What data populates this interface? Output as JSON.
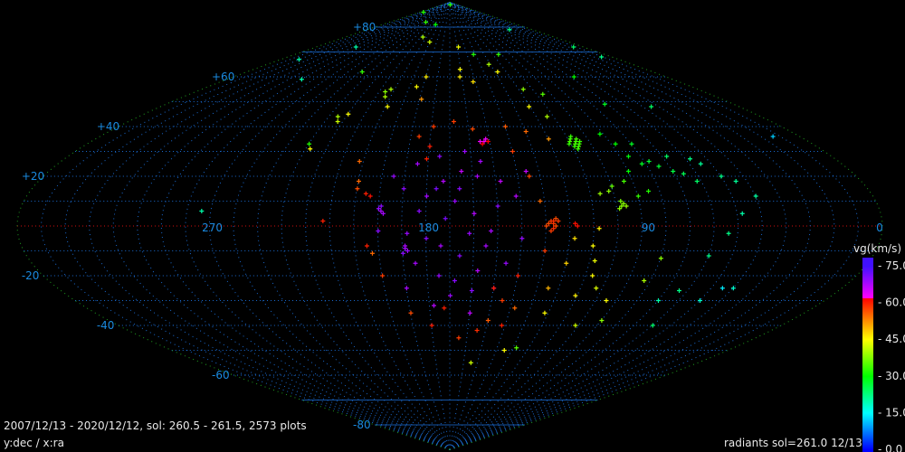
{
  "footer": {
    "summary": "2007/12/13 - 2020/12/12,  sol: 260.5 - 261.5, 2573 plots",
    "axes": "y:dec / x:ra",
    "radiants": "radiants sol=261.0 12/13"
  },
  "colors": {
    "background": "#000000",
    "grid": "#1a6ad0",
    "equator": "#d01010",
    "boundary": "#20a020",
    "label": "#1a8ae0"
  },
  "chart_data": {
    "type": "scatter",
    "projection": "sinusoidal",
    "xlabel": "ra",
    "ylabel": "dec",
    "xlim": [
      360,
      0
    ],
    "ylim": [
      -90,
      90
    ],
    "grid": true,
    "ra_tick_labels": [
      {
        "value": 270,
        "label": "270"
      },
      {
        "value": 180,
        "label": "180"
      },
      {
        "value": 90,
        "label": "90"
      },
      {
        "value": 0,
        "label": "0"
      }
    ],
    "dec_tick_labels": [
      {
        "value": 80,
        "label": "+80"
      },
      {
        "value": 60,
        "label": "+60"
      },
      {
        "value": 40,
        "label": "+40"
      },
      {
        "value": 20,
        "label": "+20"
      },
      {
        "value": -20,
        "label": "-20"
      },
      {
        "value": -40,
        "label": "-40"
      },
      {
        "value": -60,
        "label": "-60"
      },
      {
        "value": -80,
        "label": "-80"
      }
    ],
    "colorbar": {
      "title": "vg(km/s)",
      "range": [
        0,
        75
      ],
      "tick_labels": [
        "75.0",
        "60.0",
        "45.0",
        "30.0",
        "15.0",
        "0.0"
      ],
      "tick_values": [
        75,
        60,
        45,
        30,
        15,
        0
      ],
      "stops": [
        [
          0,
          "#0000ff"
        ],
        [
          15,
          "#00ffff"
        ],
        [
          30,
          "#00ff00"
        ],
        [
          45,
          "#ffff00"
        ],
        [
          62,
          "#ff0000"
        ],
        [
          62.01,
          "#ff00ff"
        ],
        [
          75,
          "#4010ff"
        ]
      ]
    },
    "point_fields": [
      "ra",
      "dec",
      "vg"
    ],
    "points": [
      [
        180,
        89,
        32
      ],
      [
        340,
        86,
        32
      ],
      [
        253,
        82,
        33
      ],
      [
        219,
        81,
        30
      ],
      [
        51,
        79,
        22
      ],
      [
        227,
        76,
        40
      ],
      [
        211,
        74,
        42
      ],
      [
        307,
        72,
        20
      ],
      [
        169,
        72,
        44
      ],
      [
        153,
        69,
        32
      ],
      [
        124,
        69,
        33
      ],
      [
        341,
        67,
        20
      ],
      [
        300,
        59,
        20
      ],
      [
        258,
        62,
        33
      ],
      [
        223,
        55,
        40
      ],
      [
        224,
        52,
        40
      ],
      [
        226,
        54,
        38
      ],
      [
        219,
        48,
        45
      ],
      [
        205,
        56,
        45
      ],
      [
        200,
        60,
        46
      ],
      [
        199,
        51,
        52
      ],
      [
        172,
        60,
        46
      ],
      [
        162,
        58,
        47
      ],
      [
        171,
        63,
        45
      ],
      [
        142,
        65,
        40
      ],
      [
        138,
        62,
        45
      ],
      [
        131,
        48,
        45
      ],
      [
        127,
        55,
        38
      ],
      [
        116,
        53,
        35
      ],
      [
        124,
        44,
        40
      ],
      [
        77,
        60,
        30
      ],
      [
        82,
        49,
        28
      ],
      [
        55,
        48,
        24
      ],
      [
        12,
        68,
        22
      ],
      [
        14,
        72,
        24
      ],
      [
        250,
        33,
        32
      ],
      [
        245,
        44,
        40
      ],
      [
        243,
        42,
        42
      ],
      [
        240,
        45,
        45
      ],
      [
        248,
        31,
        45
      ],
      [
        222,
        26,
        55
      ],
      [
        220,
        18,
        55
      ],
      [
        216,
        13,
        60
      ],
      [
        214,
        12,
        61
      ],
      [
        209,
        6,
        68
      ],
      [
        210,
        7,
        69
      ],
      [
        208,
        5,
        68
      ],
      [
        209,
        8,
        70
      ],
      [
        199,
        -9,
        68
      ],
      [
        198,
        -10,
        69
      ],
      [
        200,
        -11,
        70
      ],
      [
        199,
        -8,
        68
      ],
      [
        233,
        2,
        60
      ],
      [
        213,
        -11,
        55
      ],
      [
        190,
        32,
        60
      ],
      [
        191,
        27,
        60
      ],
      [
        196,
        36,
        58
      ],
      [
        189,
        40,
        58
      ],
      [
        178,
        42,
        58
      ],
      [
        168,
        39,
        57
      ],
      [
        163,
        34,
        63
      ],
      [
        162,
        35,
        63
      ],
      [
        164,
        33,
        62
      ],
      [
        161,
        34,
        62
      ],
      [
        165,
        34,
        63
      ],
      [
        195,
        25,
        68
      ],
      [
        185,
        28,
        70
      ],
      [
        175,
        22,
        66
      ],
      [
        168,
        20,
        68
      ],
      [
        200,
        15,
        70
      ],
      [
        190,
        12,
        68
      ],
      [
        178,
        10,
        69
      ],
      [
        170,
        5,
        67
      ],
      [
        160,
        8,
        70
      ],
      [
        158,
        18,
        66
      ],
      [
        182,
        3,
        71
      ],
      [
        172,
        -3,
        69
      ],
      [
        165,
        -8,
        68
      ],
      [
        190,
        -5,
        70
      ],
      [
        195,
        -15,
        68
      ],
      [
        185,
        -20,
        69
      ],
      [
        176,
        -12,
        70
      ],
      [
        168,
        -18,
        67
      ],
      [
        160,
        -25,
        68
      ],
      [
        180,
        -28,
        69
      ],
      [
        188,
        -32,
        67
      ],
      [
        170,
        -35,
        66
      ],
      [
        205,
        20,
        69
      ],
      [
        210,
        -2,
        70
      ],
      [
        150,
        -5,
        69
      ],
      [
        152,
        12,
        67
      ],
      [
        146,
        22,
        66
      ],
      [
        173,
        30,
        69
      ],
      [
        183,
        18,
        67
      ],
      [
        193,
        6,
        70
      ],
      [
        163,
        -2,
        68
      ],
      [
        156,
        -15,
        69
      ],
      [
        178,
        -22,
        70
      ],
      [
        200,
        -25,
        68
      ],
      [
        186,
        15,
        71
      ],
      [
        176,
        15,
        70
      ],
      [
        166,
        26,
        68
      ],
      [
        198,
        -3,
        69
      ],
      [
        184,
        -8,
        68
      ],
      [
        170,
        -26,
        70
      ],
      [
        150,
        30,
        58
      ],
      [
        145,
        20,
        57
      ],
      [
        142,
        10,
        55
      ],
      [
        140,
        -10,
        58
      ],
      [
        150,
        -20,
        60
      ],
      [
        155,
        -30,
        58
      ],
      [
        160,
        -38,
        56
      ],
      [
        165,
        -42,
        59
      ],
      [
        175,
        -45,
        58
      ],
      [
        190,
        -40,
        60
      ],
      [
        200,
        -35,
        57
      ],
      [
        152,
        -40,
        60
      ],
      [
        148,
        -33,
        55
      ],
      [
        135,
        -25,
        50
      ],
      [
        130,
        -15,
        48
      ],
      [
        128,
        -5,
        47
      ],
      [
        132,
        -35,
        45
      ],
      [
        145,
        -50,
        45
      ],
      [
        165,
        -55,
        42
      ],
      [
        210,
        -20,
        58
      ],
      [
        215,
        -8,
        60
      ],
      [
        220,
        15,
        57
      ],
      [
        140,
        38,
        55
      ],
      [
        130,
        35,
        52
      ],
      [
        150,
        40,
        56
      ],
      [
        137,
        1,
        58
      ],
      [
        136,
        0,
        57
      ],
      [
        138,
        2,
        58
      ],
      [
        137,
        -1,
        59
      ],
      [
        139,
        1,
        57
      ],
      [
        135,
        2,
        58
      ],
      [
        136,
        3,
        57
      ],
      [
        138,
        -2,
        58
      ],
      [
        137,
        2,
        59
      ],
      [
        140,
        0,
        57
      ],
      [
        127,
        0,
        61
      ],
      [
        128,
        1,
        61
      ],
      [
        118,
        33,
        34
      ],
      [
        117,
        34,
        34
      ],
      [
        119,
        32,
        33
      ],
      [
        116,
        33,
        34
      ],
      [
        120,
        34,
        34
      ],
      [
        118,
        31,
        33
      ],
      [
        117,
        32,
        34
      ],
      [
        115,
        34,
        33
      ],
      [
        119,
        35,
        34
      ],
      [
        121,
        33,
        33
      ],
      [
        116,
        35,
        34
      ],
      [
        118,
        36,
        33
      ],
      [
        108,
        8,
        38
      ],
      [
        107,
        9,
        38
      ],
      [
        109,
        7,
        38
      ],
      [
        108,
        10,
        37
      ],
      [
        106,
        8,
        39
      ],
      [
        112,
        14,
        38
      ],
      [
        116,
        13,
        39
      ],
      [
        110,
        16,
        36
      ],
      [
        104,
        18,
        34
      ],
      [
        100,
        22,
        30
      ],
      [
        96,
        28,
        29
      ],
      [
        92,
        25,
        28
      ],
      [
        88,
        26,
        27
      ],
      [
        85,
        24,
        27
      ],
      [
        80,
        22,
        26
      ],
      [
        76,
        21,
        25
      ],
      [
        72,
        18,
        24
      ],
      [
        68,
        27,
        22
      ],
      [
        65,
        25,
        21
      ],
      [
        98,
        33,
        30
      ],
      [
        102,
        37,
        30
      ],
      [
        90,
        33,
        28
      ],
      [
        78,
        28,
        24
      ],
      [
        60,
        20,
        22
      ],
      [
        55,
        18,
        21
      ],
      [
        50,
        12,
        21
      ],
      [
        58,
        5,
        20
      ],
      [
        64,
        -3,
        22
      ],
      [
        70,
        -12,
        22
      ],
      [
        74,
        -26,
        22
      ],
      [
        80,
        -30,
        20
      ],
      [
        95,
        14,
        32
      ],
      [
        100,
        12,
        33
      ],
      [
        118,
        -1,
        46
      ],
      [
        120,
        -8,
        45
      ],
      [
        118,
        -14,
        44
      ],
      [
        117,
        -20,
        45
      ],
      [
        113,
        -25,
        43
      ],
      [
        121,
        -28,
        46
      ],
      [
        105,
        -30,
        45
      ],
      [
        112,
        -40,
        42
      ],
      [
        100,
        -38,
        38
      ],
      [
        93,
        -22,
        40
      ],
      [
        90,
        -13,
        38
      ],
      [
        60,
        -30,
        18
      ],
      [
        70,
        -40,
        24
      ],
      [
        50,
        -25,
        18
      ],
      [
        14,
        36,
        12
      ],
      [
        55,
        -25,
        14
      ],
      [
        284,
        6,
        20
      ],
      [
        138,
        -49,
        35
      ],
      [
        183,
        -33,
        60
      ],
      [
        160,
        -25,
        60
      ]
    ]
  }
}
